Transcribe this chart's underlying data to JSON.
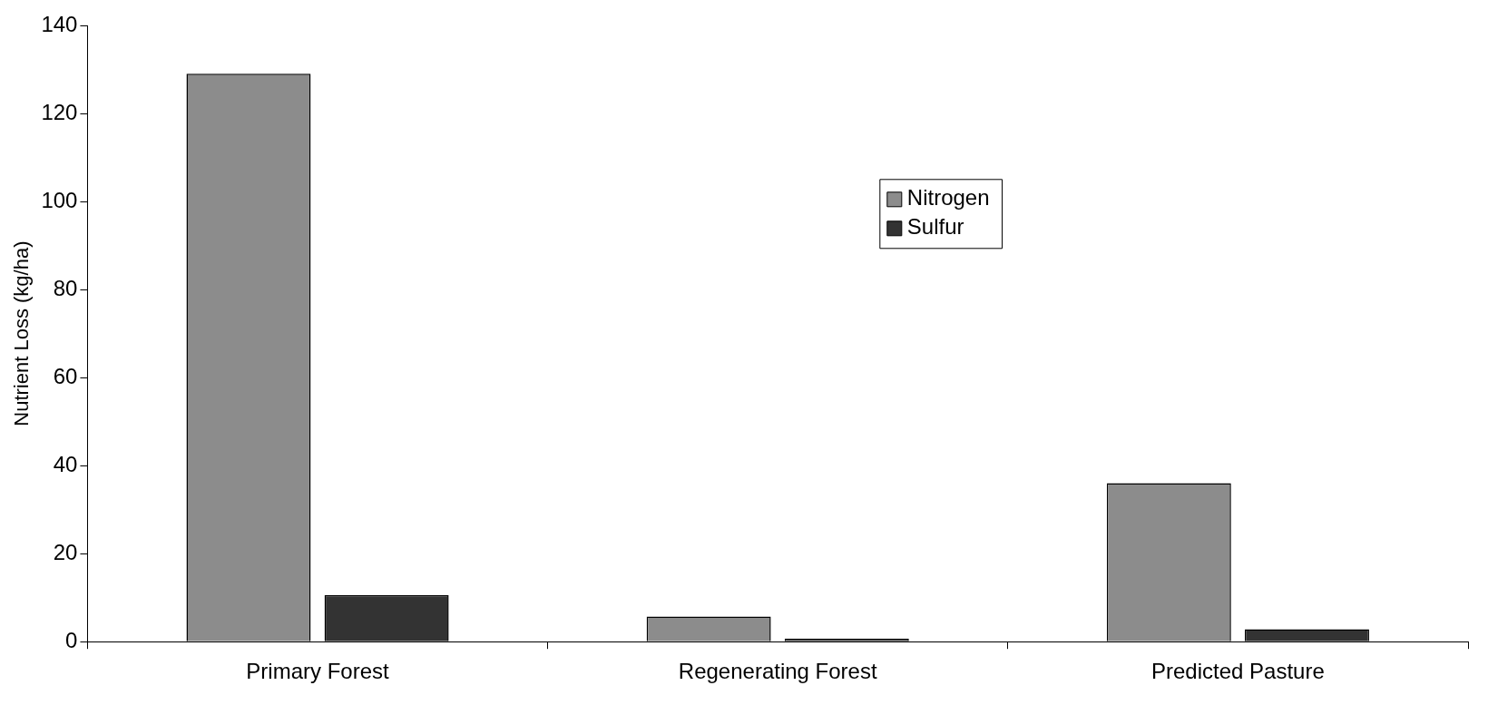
{
  "chart_data": {
    "type": "bar",
    "ylabel": "Nutrient Loss (kg/ha)",
    "categories": [
      "Primary Forest",
      "Regenerating Forest",
      "Predicted Pasture"
    ],
    "series": [
      {
        "name": "Nitrogen",
        "color": "#8c8c8c",
        "values": [
          129,
          5.7,
          36
        ]
      },
      {
        "name": "Sulfur",
        "color": "#333333",
        "values": [
          10.6,
          0.7,
          2.8
        ]
      }
    ],
    "ylim": [
      0,
      140
    ],
    "yticks": [
      0,
      20,
      40,
      60,
      80,
      100,
      120,
      140
    ],
    "grid": false,
    "legend": "top right"
  }
}
